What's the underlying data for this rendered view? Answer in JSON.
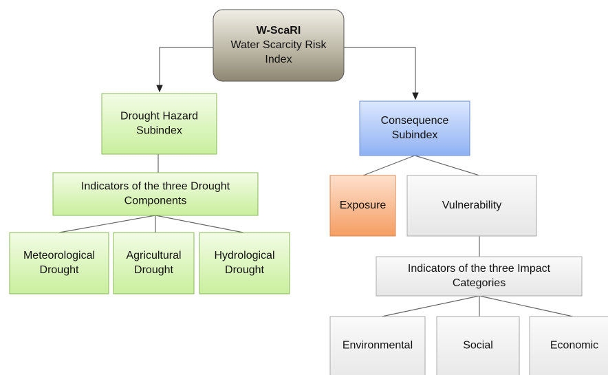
{
  "nodes": [
    {
      "title": "W-ScaRI",
      "lines": [
        "Water Scarcity Risk",
        "Index"
      ]
    },
    {
      "lines": [
        "Drought Hazard",
        "Subindex"
      ]
    },
    {
      "lines": [
        "Consequence",
        "Subindex"
      ]
    },
    {
      "lines": [
        "Indicators of the three Drought",
        "Components"
      ]
    },
    {
      "lines": [
        "Meteorological",
        "Drought"
      ]
    },
    {
      "lines": [
        "Agricultural",
        "Drought"
      ]
    },
    {
      "lines": [
        "Hydrological",
        "Drought"
      ]
    },
    {
      "lines": [
        "Exposure"
      ]
    },
    {
      "lines": [
        "Vulnerability"
      ]
    },
    {
      "lines": [
        "Indicators of the three Impact",
        "Categories"
      ]
    },
    {
      "lines": [
        "Environmental"
      ]
    },
    {
      "lines": [
        "Social"
      ]
    },
    {
      "lines": [
        "Economic"
      ]
    }
  ]
}
